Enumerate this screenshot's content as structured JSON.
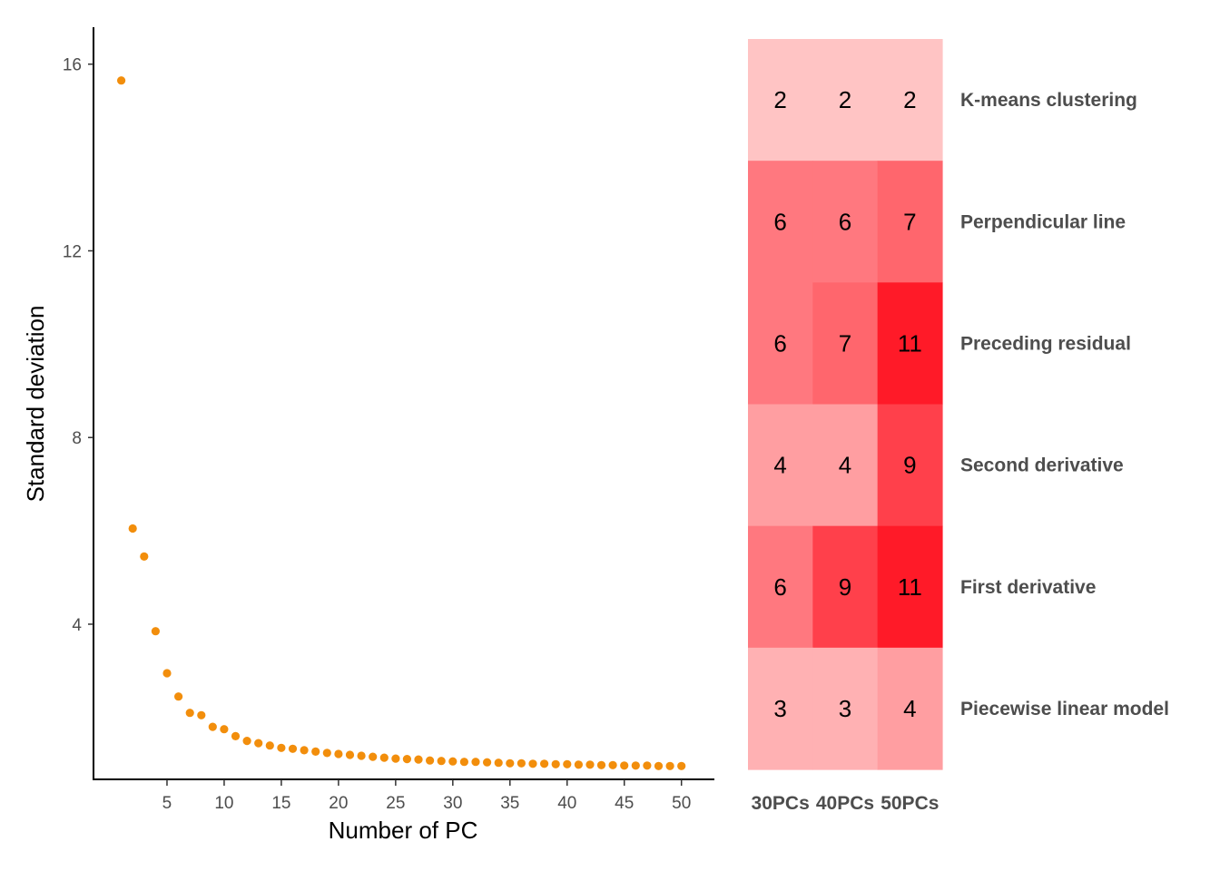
{
  "chart_data": [
    {
      "type": "scatter",
      "xlabel": "Number of PC",
      "ylabel": "Standard deviation",
      "xlim": [
        0,
        50.5
      ],
      "ylim": [
        0.5,
        16.5
      ],
      "xticks": [
        5,
        10,
        15,
        20,
        25,
        30,
        35,
        40,
        45,
        50
      ],
      "yticks": [
        4,
        8,
        12,
        16
      ],
      "grid": false,
      "point_color": "#f28e0c",
      "x": [
        1,
        2,
        3,
        4,
        5,
        6,
        7,
        8,
        9,
        10,
        11,
        12,
        13,
        14,
        15,
        16,
        17,
        18,
        19,
        20,
        21,
        22,
        23,
        24,
        25,
        26,
        27,
        28,
        29,
        30,
        31,
        32,
        33,
        34,
        35,
        36,
        37,
        38,
        39,
        40,
        41,
        42,
        43,
        44,
        45,
        46,
        47,
        48,
        49,
        50
      ],
      "y": [
        15.65,
        6.05,
        5.45,
        3.85,
        2.95,
        2.45,
        2.1,
        2.05,
        1.8,
        1.75,
        1.6,
        1.5,
        1.45,
        1.4,
        1.35,
        1.33,
        1.3,
        1.27,
        1.24,
        1.22,
        1.2,
        1.18,
        1.16,
        1.14,
        1.12,
        1.11,
        1.1,
        1.08,
        1.07,
        1.06,
        1.05,
        1.05,
        1.04,
        1.03,
        1.02,
        1.02,
        1.01,
        1.01,
        1.0,
        1.0,
        0.99,
        0.99,
        0.98,
        0.98,
        0.97,
        0.97,
        0.97,
        0.96,
        0.96,
        0.96
      ]
    },
    {
      "type": "heatmap",
      "columns": [
        "30PCs",
        "40PCs",
        "50PCs"
      ],
      "rows": [
        "K-means clustering",
        "Perpendicular line",
        "Preceding residual",
        "Second derivative",
        "First derivative",
        "Piecewise linear model"
      ],
      "values": [
        [
          2,
          2,
          2
        ],
        [
          6,
          6,
          7
        ],
        [
          6,
          7,
          11
        ],
        [
          4,
          4,
          9
        ],
        [
          6,
          9,
          11
        ],
        [
          3,
          3,
          4
        ]
      ],
      "color_low": "#ffc4c4",
      "color_high": "#ff1a28",
      "value_range": [
        2,
        11
      ]
    }
  ]
}
